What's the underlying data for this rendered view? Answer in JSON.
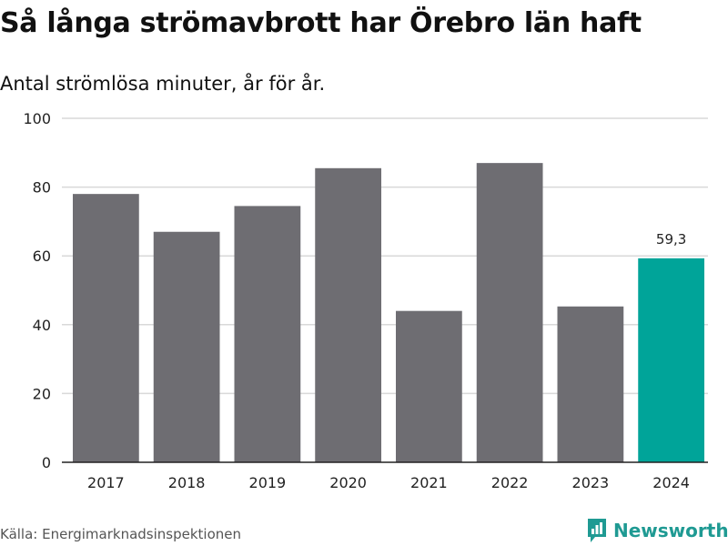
{
  "title": "Så långa strömavbrott har Örebro län haft",
  "subtitle": "Antal strömlösa minuter, år för år.",
  "source": "Källa: Energimarknadsinspektionen",
  "brand": {
    "name": "Newsworthy",
    "icon": "newsworthy-logo-icon",
    "color": "#1f9a93"
  },
  "colors": {
    "bar": "#6e6d72",
    "highlight": "#00a499",
    "grid": "#d9d9d9",
    "axis": "#222222"
  },
  "chart_data": {
    "type": "bar",
    "title": "Så långa strömavbrott har Örebro län haft",
    "subtitle": "Antal strömlösa minuter, år för år.",
    "xlabel": "",
    "ylabel": "",
    "categories": [
      "2017",
      "2018",
      "2019",
      "2020",
      "2021",
      "2022",
      "2023",
      "2024"
    ],
    "values": [
      78,
      67,
      74.5,
      85.5,
      44,
      87,
      45.3,
      59.3
    ],
    "ylim": [
      0,
      100
    ],
    "yticks": [
      0,
      20,
      40,
      60,
      80,
      100
    ],
    "grid": true,
    "highlight_index": 7,
    "data_labels": [
      {
        "index": 7,
        "text": "59,3"
      }
    ]
  }
}
